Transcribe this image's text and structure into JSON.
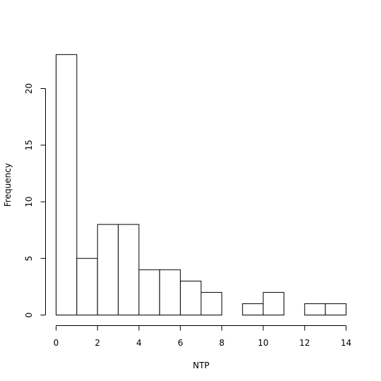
{
  "chart_data": {
    "type": "bar",
    "title": "",
    "xlabel": "NTP",
    "ylabel": "Frequency",
    "bins": [
      {
        "start": 0,
        "end": 1,
        "count": 23
      },
      {
        "start": 1,
        "end": 2,
        "count": 5
      },
      {
        "start": 2,
        "end": 3,
        "count": 8
      },
      {
        "start": 3,
        "end": 4,
        "count": 8
      },
      {
        "start": 4,
        "end": 5,
        "count": 4
      },
      {
        "start": 5,
        "end": 6,
        "count": 4
      },
      {
        "start": 6,
        "end": 7,
        "count": 3
      },
      {
        "start": 7,
        "end": 8,
        "count": 2
      },
      {
        "start": 8,
        "end": 9,
        "count": 0
      },
      {
        "start": 9,
        "end": 10,
        "count": 1
      },
      {
        "start": 10,
        "end": 11,
        "count": 2
      },
      {
        "start": 11,
        "end": 12,
        "count": 0
      },
      {
        "start": 12,
        "end": 13,
        "count": 1
      },
      {
        "start": 13,
        "end": 14,
        "count": 1
      }
    ],
    "xlim": [
      0,
      14
    ],
    "ylim": [
      0,
      23
    ],
    "xticks": [
      0,
      2,
      4,
      6,
      8,
      10,
      12,
      14
    ],
    "yticks": [
      0,
      5,
      10,
      15,
      20
    ],
    "grid": false,
    "legend": "none"
  }
}
